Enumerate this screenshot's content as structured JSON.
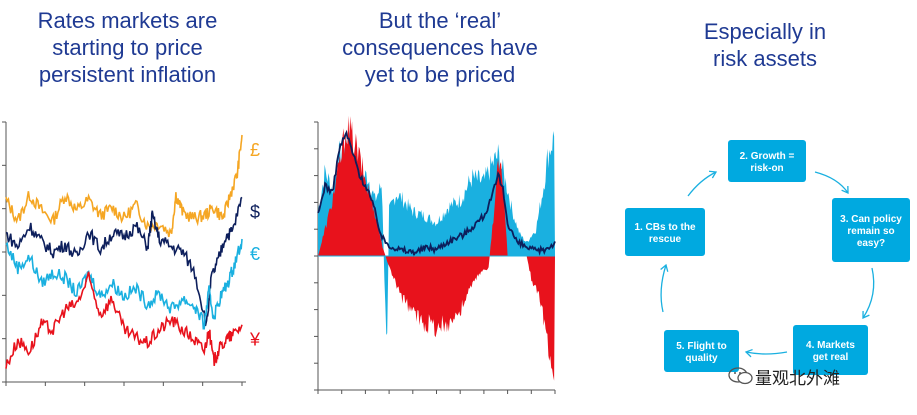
{
  "panels": [
    {
      "title_lines": [
        "Rates markets are",
        "starting to price",
        "persistent inflation"
      ]
    },
    {
      "title_lines": [
        "But the ‘real’",
        "consequences have",
        "yet to be priced"
      ]
    },
    {
      "title_lines": [
        "Especially in",
        "risk assets"
      ]
    }
  ],
  "chart_data": [
    {
      "type": "line",
      "title": "Rates markets are starting to price persistent inflation",
      "xlabel": "",
      "ylabel": "",
      "grid": false,
      "ylim": [
        0,
        100
      ],
      "xlim": [
        0,
        100
      ],
      "series": [
        {
          "name": "£",
          "color": "#f5a623",
          "points": [
            [
              0,
              70
            ],
            [
              5,
              62
            ],
            [
              10,
              72
            ],
            [
              15,
              66
            ],
            [
              20,
              62
            ],
            [
              25,
              72
            ],
            [
              30,
              66
            ],
            [
              35,
              70
            ],
            [
              40,
              64
            ],
            [
              45,
              67
            ],
            [
              50,
              63
            ],
            [
              55,
              68
            ],
            [
              60,
              60
            ],
            [
              65,
              61
            ],
            [
              70,
              57
            ],
            [
              72,
              72
            ],
            [
              75,
              65
            ],
            [
              80,
              63
            ],
            [
              84,
              64
            ],
            [
              88,
              67
            ],
            [
              92,
              63
            ],
            [
              95,
              72
            ],
            [
              98,
              80
            ],
            [
              100,
              95
            ]
          ]
        },
        {
          "name": "$",
          "color": "#0d1f5c",
          "points": [
            [
              0,
              57
            ],
            [
              5,
              52
            ],
            [
              10,
              60
            ],
            [
              15,
              54
            ],
            [
              20,
              50
            ],
            [
              25,
              53
            ],
            [
              30,
              48
            ],
            [
              35,
              58
            ],
            [
              40,
              51
            ],
            [
              45,
              57
            ],
            [
              50,
              56
            ],
            [
              55,
              60
            ],
            [
              60,
              52
            ],
            [
              62,
              64
            ],
            [
              65,
              55
            ],
            [
              70,
              52
            ],
            [
              75,
              50
            ],
            [
              80,
              42
            ],
            [
              85,
              22
            ],
            [
              87,
              40
            ],
            [
              90,
              47
            ],
            [
              93,
              56
            ],
            [
              96,
              58
            ],
            [
              100,
              71
            ]
          ]
        },
        {
          "name": "€",
          "color": "#1ab0e0",
          "points": [
            [
              0,
              53
            ],
            [
              5,
              44
            ],
            [
              10,
              48
            ],
            [
              15,
              38
            ],
            [
              20,
              42
            ],
            [
              25,
              40
            ],
            [
              30,
              34
            ],
            [
              35,
              42
            ],
            [
              40,
              33
            ],
            [
              45,
              38
            ],
            [
              50,
              33
            ],
            [
              55,
              36
            ],
            [
              60,
              30
            ],
            [
              65,
              34
            ],
            [
              70,
              28
            ],
            [
              75,
              32
            ],
            [
              80,
              29
            ],
            [
              84,
              22
            ],
            [
              86,
              35
            ],
            [
              88,
              25
            ],
            [
              91,
              33
            ],
            [
              94,
              38
            ],
            [
              97,
              46
            ],
            [
              100,
              55
            ]
          ]
        },
        {
          "name": "¥",
          "color": "#e8121c",
          "points": [
            [
              0,
              6
            ],
            [
              5,
              16
            ],
            [
              10,
              12
            ],
            [
              15,
              22
            ],
            [
              20,
              20
            ],
            [
              25,
              28
            ],
            [
              30,
              30
            ],
            [
              35,
              40
            ],
            [
              40,
              26
            ],
            [
              45,
              32
            ],
            [
              50,
              20
            ],
            [
              55,
              17
            ],
            [
              60,
              15
            ],
            [
              65,
              20
            ],
            [
              70,
              24
            ],
            [
              75,
              20
            ],
            [
              80,
              16
            ],
            [
              84,
              12
            ],
            [
              86,
              20
            ],
            [
              88,
              8
            ],
            [
              90,
              12
            ],
            [
              93,
              16
            ],
            [
              96,
              18
            ],
            [
              100,
              22
            ]
          ]
        }
      ]
    },
    {
      "type": "area",
      "title": "But the ‘real’ consequences have yet to be priced",
      "xlabel": "",
      "ylabel": "",
      "grid": false,
      "ylim": [
        -60,
        60
      ],
      "xlim": [
        0,
        100
      ],
      "series": [
        {
          "name": "",
          "color": "#1ab0e0",
          "points": [
            [
              0,
              20
            ],
            [
              3,
              38
            ],
            [
              6,
              30
            ],
            [
              9,
              45
            ],
            [
              12,
              50
            ],
            [
              15,
              48
            ],
            [
              18,
              35
            ],
            [
              21,
              36
            ],
            [
              24,
              25
            ],
            [
              27,
              32
            ],
            [
              28,
              -10
            ],
            [
              29,
              -45
            ],
            [
              30,
              20
            ],
            [
              33,
              28
            ],
            [
              36,
              25
            ],
            [
              40,
              20
            ],
            [
              45,
              18
            ],
            [
              50,
              15
            ],
            [
              55,
              22
            ],
            [
              60,
              25
            ],
            [
              65,
              35
            ],
            [
              70,
              33
            ],
            [
              73,
              40
            ],
            [
              76,
              45
            ],
            [
              78,
              38
            ],
            [
              80,
              30
            ],
            [
              82,
              20
            ],
            [
              85,
              10
            ],
            [
              88,
              6
            ],
            [
              92,
              12
            ],
            [
              95,
              30
            ],
            [
              97,
              45
            ],
            [
              100,
              55
            ]
          ]
        },
        {
          "name": "",
          "color": "#e8121c",
          "points": [
            [
              0,
              0
            ],
            [
              5,
              20
            ],
            [
              9,
              40
            ],
            [
              12,
              58
            ],
            [
              15,
              52
            ],
            [
              18,
              42
            ],
            [
              21,
              30
            ],
            [
              24,
              20
            ],
            [
              27,
              5
            ],
            [
              30,
              -5
            ],
            [
              35,
              -18
            ],
            [
              40,
              -25
            ],
            [
              45,
              -30
            ],
            [
              50,
              -32
            ],
            [
              55,
              -30
            ],
            [
              60,
              -25
            ],
            [
              64,
              -15
            ],
            [
              68,
              -8
            ],
            [
              72,
              -5
            ],
            [
              76,
              40
            ],
            [
              78,
              35
            ],
            [
              80,
              0
            ],
            [
              84,
              0
            ],
            [
              88,
              0
            ],
            [
              90,
              -10
            ],
            [
              94,
              -20
            ],
            [
              97,
              -40
            ],
            [
              100,
              -52
            ]
          ]
        },
        {
          "name": "",
          "color": "#0d1f5c",
          "points": [
            [
              0,
              18
            ],
            [
              3,
              32
            ],
            [
              6,
              28
            ],
            [
              9,
              48
            ],
            [
              12,
              55
            ],
            [
              15,
              45
            ],
            [
              18,
              35
            ],
            [
              21,
              30
            ],
            [
              24,
              20
            ],
            [
              27,
              8
            ],
            [
              30,
              5
            ],
            [
              34,
              3
            ],
            [
              38,
              2
            ],
            [
              42,
              2
            ],
            [
              46,
              4
            ],
            [
              50,
              3
            ],
            [
              54,
              6
            ],
            [
              58,
              8
            ],
            [
              62,
              10
            ],
            [
              66,
              14
            ],
            [
              70,
              18
            ],
            [
              73,
              25
            ],
            [
              76,
              36
            ],
            [
              78,
              30
            ],
            [
              80,
              15
            ],
            [
              84,
              6
            ],
            [
              88,
              4
            ],
            [
              92,
              2
            ],
            [
              96,
              3
            ],
            [
              100,
              6
            ]
          ]
        }
      ]
    }
  ],
  "cycle": {
    "nodes": [
      {
        "lines": [
          "2. Growth =",
          "risk-on"
        ]
      },
      {
        "lines": [
          "3. Can policy",
          "remain so",
          "easy?"
        ]
      },
      {
        "lines": [
          "4. Markets",
          "get real"
        ]
      },
      {
        "lines": [
          "5. Flight to",
          "quality"
        ]
      },
      {
        "lines": [
          "1. CBs to the",
          "rescue"
        ]
      }
    ],
    "color": "#00a9e0"
  },
  "watermark": "量观北外滩"
}
